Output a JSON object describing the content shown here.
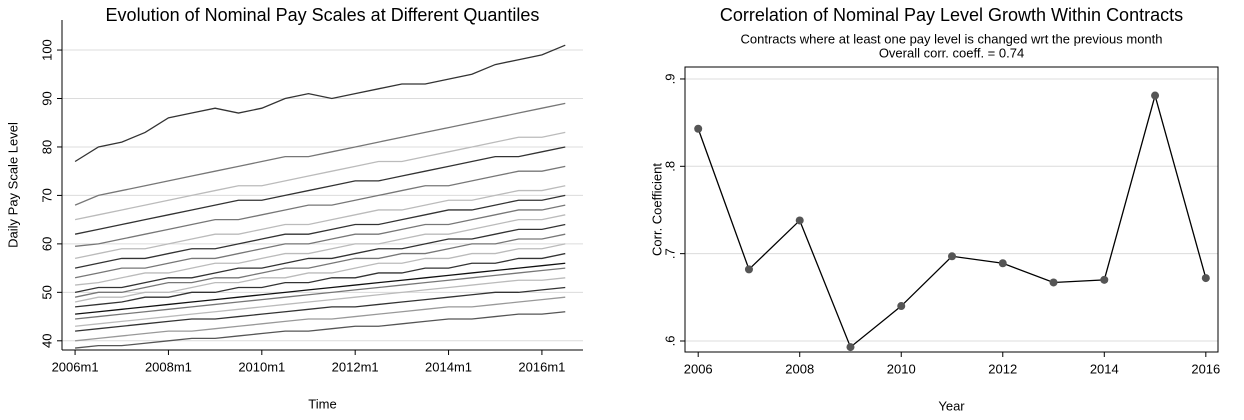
{
  "chart_data": [
    {
      "type": "line",
      "title": "Evolution of Nominal Pay Scales at Different Quantiles",
      "x_label": "Time",
      "y_label": "Daily Pay Scale Level",
      "xlim": [
        2005.72,
        2016.88
      ],
      "ylim": [
        38.1,
        106.2
      ],
      "xticks": [
        {
          "value": 2006,
          "label": "2006m1"
        },
        {
          "value": 2008,
          "label": "2008m1"
        },
        {
          "value": 2010,
          "label": "2010m1"
        },
        {
          "value": 2012,
          "label": "2012m1"
        },
        {
          "value": 2014,
          "label": "2014m1"
        },
        {
          "value": 2016,
          "label": "2016m1"
        }
      ],
      "yticks": [
        40,
        50,
        60,
        70,
        80,
        90,
        100
      ],
      "grid": true,
      "box": false,
      "markers": false,
      "x": [
        2006,
        2006.5,
        2007,
        2007.5,
        2008,
        2008.5,
        2009,
        2009.5,
        2010,
        2010.5,
        2011,
        2011.5,
        2012,
        2012.5,
        2013,
        2013.5,
        2014,
        2014.5,
        2015,
        2015.5,
        2016,
        2016.5
      ],
      "series": [
        {
          "color": "#333333",
          "values": [
            77,
            80,
            81,
            83,
            86,
            87,
            88,
            87,
            88,
            90,
            91,
            90,
            91,
            92,
            93,
            93,
            94,
            95,
            97,
            98,
            99,
            101
          ]
        },
        {
          "color": "#777777",
          "values": [
            68,
            70,
            71,
            72,
            73,
            74,
            75,
            76,
            77,
            78,
            78,
            79,
            80,
            81,
            82,
            83,
            84,
            85,
            86,
            87,
            88,
            89
          ]
        },
        {
          "color": "#bbbbbb",
          "values": [
            65,
            66,
            67,
            68,
            69,
            70,
            71,
            72,
            72,
            73,
            74,
            75,
            76,
            77,
            77,
            78,
            79,
            80,
            81,
            82,
            82,
            83
          ]
        },
        {
          "color": "#333333",
          "values": [
            62,
            63,
            64,
            65,
            66,
            67,
            68,
            69,
            69,
            70,
            71,
            72,
            73,
            73,
            74,
            75,
            76,
            77,
            78,
            78,
            79,
            80
          ]
        },
        {
          "color": "#777777",
          "values": [
            59.5,
            60,
            61,
            62,
            63,
            64,
            65,
            65,
            66,
            67,
            68,
            68,
            69,
            70,
            71,
            72,
            72,
            73,
            74,
            75,
            75,
            76
          ]
        },
        {
          "color": "#bbbbbb",
          "values": [
            57,
            58,
            59,
            59,
            60,
            61,
            62,
            62,
            63,
            64,
            64,
            65,
            66,
            67,
            67,
            68,
            69,
            69,
            70,
            71,
            71,
            72
          ]
        },
        {
          "color": "#333333",
          "values": [
            55,
            56,
            57,
            57,
            58,
            59,
            59,
            60,
            61,
            62,
            62,
            63,
            64,
            64,
            65,
            66,
            67,
            67,
            68,
            69,
            69,
            70
          ]
        },
        {
          "color": "#777777",
          "values": [
            53,
            54,
            55,
            55,
            56,
            57,
            57,
            58,
            59,
            60,
            60,
            61,
            62,
            62,
            63,
            64,
            64,
            65,
            66,
            67,
            67,
            68
          ]
        },
        {
          "color": "#bbbbbb",
          "values": [
            51.5,
            52,
            53,
            54,
            54,
            55,
            56,
            56,
            57,
            58,
            58,
            59,
            60,
            60,
            61,
            62,
            62,
            63,
            64,
            65,
            65,
            66
          ]
        },
        {
          "color": "#333333",
          "values": [
            50,
            51,
            51,
            52,
            53,
            53,
            54,
            55,
            55,
            56,
            57,
            57,
            58,
            59,
            59,
            60,
            61,
            61,
            62,
            63,
            63,
            64
          ]
        },
        {
          "color": "#777777",
          "values": [
            49,
            50,
            50,
            51,
            52,
            52,
            53,
            53,
            54,
            55,
            55,
            56,
            57,
            57,
            58,
            58,
            59,
            60,
            60,
            61,
            61,
            62
          ]
        },
        {
          "color": "#bbbbbb",
          "values": [
            48,
            49,
            49,
            50,
            50,
            51,
            52,
            52,
            53,
            53,
            54,
            54,
            55,
            56,
            56,
            57,
            57,
            58,
            58,
            59,
            59,
            60
          ]
        },
        {
          "color": "#333333",
          "values": [
            47,
            47.5,
            48,
            49,
            49,
            50,
            50,
            51,
            51,
            52,
            52,
            53,
            53,
            54,
            54,
            55,
            55,
            56,
            56,
            57,
            57,
            58
          ]
        },
        {
          "color": "#111111",
          "values": [
            45.5,
            46,
            46.5,
            47,
            47.5,
            48,
            48.5,
            49,
            49.5,
            50,
            50.5,
            51,
            51.5,
            52,
            52.5,
            53,
            53.5,
            54,
            54.5,
            55,
            55.5,
            56
          ]
        },
        {
          "color": "#777777",
          "values": [
            44.5,
            45,
            45.5,
            46,
            46.5,
            47,
            47.5,
            48,
            48.5,
            49,
            49.5,
            50,
            50.5,
            51,
            51.5,
            52,
            52.5,
            53,
            53.5,
            54,
            54.5,
            55
          ]
        },
        {
          "color": "#bbbbbb",
          "values": [
            43,
            43.5,
            44,
            44.5,
            45,
            45.5,
            46,
            46.5,
            47,
            47.5,
            48,
            48.5,
            49,
            49.5,
            50,
            50.5,
            51,
            51.5,
            52,
            52.5,
            52.5,
            53
          ]
        },
        {
          "color": "#333333",
          "values": [
            42,
            42.5,
            43,
            43.5,
            44,
            44.5,
            44.5,
            45,
            45.5,
            46,
            46.5,
            47,
            47,
            47.5,
            48,
            48.5,
            49,
            49.5,
            50,
            50,
            50.5,
            51
          ]
        },
        {
          "color": "#999999",
          "values": [
            40,
            40.5,
            41,
            41.5,
            42,
            42,
            42.5,
            43,
            43.5,
            44,
            44.5,
            44.5,
            45,
            45.5,
            46,
            46.5,
            47,
            47,
            47.5,
            48,
            48.5,
            49
          ]
        },
        {
          "color": "#555555",
          "values": [
            38.5,
            39,
            39,
            39.5,
            40,
            40.5,
            40.5,
            41,
            41.5,
            42,
            42,
            42.5,
            43,
            43,
            43.5,
            44,
            44.5,
            44.5,
            45,
            45.5,
            45.5,
            46
          ]
        }
      ]
    },
    {
      "type": "line",
      "title": "Correlation of Nominal Pay Level Growth Within Contracts",
      "subtitle": [
        "Contracts where at least one pay level is changed wrt the previous month",
        "Overall corr. coeff. = 0.74"
      ],
      "x_label": "Year",
      "y_label": "Corr. Coefficient",
      "xlim": [
        2005.74,
        2016.24
      ],
      "ylim": [
        0.5874,
        0.9137
      ],
      "xticks": [
        2006,
        2008,
        2010,
        2012,
        2014,
        2016
      ],
      "yticks": [
        {
          "value": 0.6,
          "label": ".6"
        },
        {
          "value": 0.7,
          "label": ".7"
        },
        {
          "value": 0.8,
          "label": ".8"
        },
        {
          "value": 0.9,
          "label": ".9"
        }
      ],
      "grid": true,
      "box": true,
      "markers": true,
      "marker_color": "#555555",
      "x": [
        2006,
        2007,
        2008,
        2009,
        2010,
        2011,
        2012,
        2013,
        2014,
        2015,
        2016
      ],
      "series": [
        {
          "color": "#000000",
          "values": [
            0.843,
            0.682,
            0.738,
            0.593,
            0.64,
            0.697,
            0.689,
            0.667,
            0.67,
            0.881,
            0.672
          ]
        }
      ]
    }
  ]
}
